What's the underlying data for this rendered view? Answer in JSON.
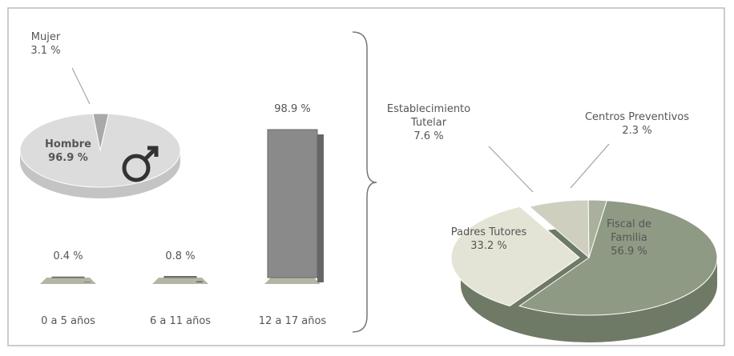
{
  "chart_data": [
    {
      "type": "pie",
      "categories": [
        "Hombre",
        "Mujer"
      ],
      "values": [
        96.9,
        3.1
      ],
      "value_labels": [
        "96.9 %",
        "3.1 %"
      ],
      "colors": [
        "#dcdcdc",
        "#a9a9a9"
      ]
    },
    {
      "type": "bar",
      "categories": [
        "0 a 5 años",
        "6 a 11 años",
        "12 a 17 años"
      ],
      "values": [
        0.4,
        0.8,
        98.9
      ],
      "value_labels": [
        "0.4 %",
        "0.8 %",
        "98.9 %"
      ],
      "color": "#8a8a8a"
    },
    {
      "type": "pie",
      "categories": [
        "Fiscal de Familia",
        "Padres Tutores",
        "Establecimiento Tutelar",
        "Centros Preventivos"
      ],
      "values": [
        56.9,
        33.2,
        7.6,
        2.3
      ],
      "value_labels": [
        "56.9 %",
        "33.2 %",
        "7.6 %",
        "2.3 %"
      ],
      "colors": [
        "#8e9a84",
        "#e4e4d6",
        "#cfcfc0",
        "#a9b09c"
      ]
    }
  ]
}
